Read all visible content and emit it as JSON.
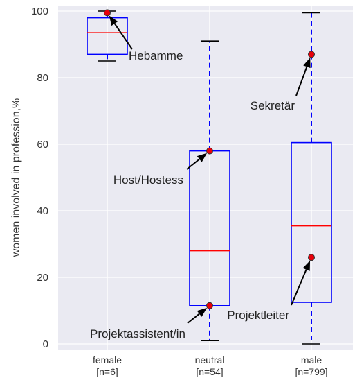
{
  "chart_data": {
    "type": "box",
    "ylabel": "women involved in profession,%",
    "ylim": [
      0,
      100
    ],
    "yticks": [
      0,
      20,
      40,
      60,
      80,
      100
    ],
    "grid": true,
    "categories": [
      {
        "name": "female",
        "n_label": "[n=6]"
      },
      {
        "name": "neutral",
        "n_label": "[n=54]"
      },
      {
        "name": "male",
        "n_label": "[n=799]"
      }
    ],
    "boxes": [
      {
        "whisker_low": 85,
        "q1": 87,
        "median": 93.5,
        "q3": 98,
        "whisker_high": 100
      },
      {
        "whisker_low": 1,
        "q1": 11.5,
        "median": 28,
        "q3": 58,
        "whisker_high": 91
      },
      {
        "whisker_low": 0,
        "q1": 12.5,
        "median": 35.5,
        "q3": 60.5,
        "whisker_high": 99.5
      }
    ],
    "annotations": [
      {
        "label": "Hebamme",
        "category": 0,
        "value": 99.5
      },
      {
        "label": "Host/Hostess",
        "category": 1,
        "value": 58
      },
      {
        "label": "Projektassistent/in",
        "category": 1,
        "value": 11.5
      },
      {
        "label": "Sekretär",
        "category": 2,
        "value": 87
      },
      {
        "label": "Projektleiter",
        "category": 2,
        "value": 26
      }
    ],
    "colors": {
      "plot_background": "#eaeaf2",
      "grid": "#ffffff",
      "box": "#0000ff",
      "median": "#ff0000",
      "whisker_cap": "#000000",
      "point_fill": "#e8000b",
      "point_edge": "#333333",
      "arrow": "#000000"
    }
  }
}
